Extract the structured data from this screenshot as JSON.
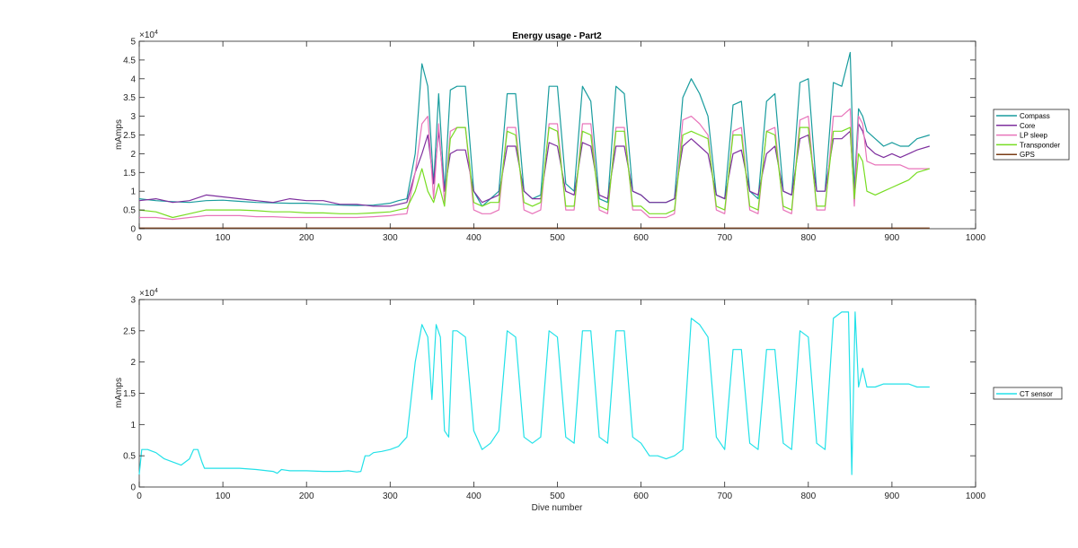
{
  "figure": {
    "title": "Energy usage - Part2"
  },
  "chart_data": [
    {
      "type": "line",
      "title": "Energy usage - Part2",
      "xlabel": "",
      "ylabel": "mAmps",
      "xlim": [
        0,
        1000
      ],
      "ylim": [
        0,
        50000
      ],
      "xticks": [
        0,
        100,
        200,
        300,
        400,
        500,
        600,
        700,
        800,
        900,
        1000
      ],
      "yticks": [
        0,
        5000,
        10000,
        15000,
        20000,
        25000,
        30000,
        35000,
        40000,
        45000,
        50000
      ],
      "ytick_labels": [
        "0",
        "0.5",
        "1",
        "1.5",
        "2",
        "2.5",
        "3",
        "3.5",
        "4",
        "4.5",
        "5"
      ],
      "y_exponent": "4",
      "legend_position": "outside-right",
      "series": [
        {
          "name": "Compass",
          "color": "#199c9e",
          "x": [
            0,
            20,
            40,
            60,
            80,
            100,
            120,
            140,
            160,
            180,
            200,
            220,
            240,
            260,
            280,
            300,
            310,
            320,
            330,
            338,
            345,
            352,
            358,
            365,
            372,
            380,
            390,
            400,
            410,
            420,
            430,
            440,
            450,
            460,
            470,
            480,
            490,
            500,
            510,
            520,
            530,
            540,
            550,
            560,
            570,
            580,
            590,
            600,
            610,
            620,
            630,
            640,
            650,
            660,
            670,
            680,
            690,
            700,
            710,
            720,
            730,
            740,
            750,
            760,
            770,
            780,
            790,
            800,
            810,
            820,
            830,
            840,
            850,
            855,
            860,
            865,
            870,
            880,
            890,
            900,
            910,
            920,
            930,
            945
          ],
          "y": [
            8000,
            7500,
            7200,
            7000,
            7500,
            7600,
            7300,
            7000,
            6900,
            6800,
            6800,
            6500,
            6300,
            6200,
            6300,
            6800,
            7500,
            8000,
            20000,
            44000,
            38000,
            12000,
            36000,
            10000,
            37000,
            38000,
            38000,
            10000,
            6000,
            8000,
            10000,
            36000,
            36000,
            10000,
            8000,
            9000,
            38000,
            38000,
            12000,
            10000,
            38000,
            34000,
            8000,
            7000,
            38000,
            36000,
            10000,
            9000,
            7000,
            7000,
            7000,
            8000,
            35000,
            40000,
            36000,
            30000,
            9000,
            8000,
            33000,
            34000,
            10000,
            8000,
            34000,
            36000,
            10000,
            9000,
            39000,
            40000,
            10000,
            10000,
            39000,
            38000,
            47000,
            10000,
            32000,
            30000,
            26000,
            24000,
            22000,
            23000,
            22000,
            22000,
            24000,
            25000
          ]
        },
        {
          "name": "Core",
          "color": "#7e2f9e",
          "x": [
            0,
            20,
            40,
            60,
            80,
            100,
            120,
            140,
            160,
            180,
            200,
            220,
            240,
            260,
            280,
            300,
            310,
            320,
            330,
            338,
            345,
            352,
            358,
            365,
            372,
            380,
            390,
            400,
            410,
            420,
            430,
            440,
            450,
            460,
            470,
            480,
            490,
            500,
            510,
            520,
            530,
            540,
            550,
            560,
            570,
            580,
            590,
            600,
            610,
            620,
            630,
            640,
            650,
            660,
            670,
            680,
            690,
            700,
            710,
            720,
            730,
            740,
            750,
            760,
            770,
            780,
            790,
            800,
            810,
            820,
            830,
            840,
            850,
            855,
            860,
            865,
            870,
            880,
            890,
            900,
            910,
            920,
            930,
            945
          ],
          "y": [
            7500,
            8000,
            7000,
            7500,
            9000,
            8500,
            8000,
            7500,
            7000,
            8000,
            7500,
            7500,
            6500,
            6500,
            6000,
            6000,
            6500,
            7000,
            15000,
            20000,
            25000,
            12000,
            26000,
            10000,
            20000,
            21000,
            21000,
            10000,
            7000,
            8000,
            9000,
            22000,
            22000,
            10000,
            8000,
            8000,
            23000,
            22000,
            10000,
            9000,
            23000,
            22000,
            9000,
            8000,
            22000,
            22000,
            10000,
            9000,
            7000,
            7000,
            7000,
            8000,
            22000,
            24000,
            22000,
            20000,
            9000,
            8000,
            20000,
            21000,
            10000,
            9000,
            20000,
            22000,
            10000,
            9000,
            24000,
            25000,
            10000,
            10000,
            24000,
            24000,
            26000,
            9000,
            28000,
            26000,
            22000,
            20000,
            19000,
            20000,
            19000,
            20000,
            21000,
            22000
          ]
        },
        {
          "name": "LP sleep",
          "color": "#e874ba",
          "x": [
            0,
            20,
            40,
            60,
            80,
            100,
            120,
            140,
            160,
            180,
            200,
            220,
            240,
            260,
            280,
            300,
            310,
            320,
            330,
            338,
            345,
            352,
            358,
            365,
            372,
            380,
            390,
            400,
            410,
            420,
            430,
            440,
            450,
            460,
            470,
            480,
            490,
            500,
            510,
            520,
            530,
            540,
            550,
            560,
            570,
            580,
            590,
            600,
            610,
            620,
            630,
            640,
            650,
            660,
            670,
            680,
            690,
            700,
            710,
            720,
            730,
            740,
            750,
            760,
            770,
            780,
            790,
            800,
            810,
            820,
            830,
            840,
            850,
            855,
            860,
            865,
            870,
            880,
            890,
            900,
            910,
            920,
            930,
            945
          ],
          "y": [
            3000,
            3000,
            2500,
            3000,
            3500,
            3500,
            3500,
            3200,
            3200,
            3000,
            3000,
            3000,
            3000,
            3000,
            3200,
            3500,
            3800,
            4000,
            15000,
            28000,
            30000,
            8000,
            28000,
            7000,
            26000,
            27000,
            27000,
            5000,
            4000,
            4000,
            5000,
            27000,
            27000,
            5000,
            4000,
            5000,
            28000,
            28000,
            5000,
            5000,
            28000,
            28000,
            5000,
            4000,
            27000,
            27000,
            5000,
            5000,
            3000,
            3000,
            3000,
            4000,
            29000,
            30000,
            28000,
            25000,
            5000,
            4000,
            26000,
            27000,
            5000,
            4000,
            26000,
            27000,
            5000,
            4000,
            29000,
            30000,
            5000,
            5000,
            30000,
            30000,
            32000,
            6000,
            30000,
            28000,
            18000,
            17000,
            17000,
            17000,
            17000,
            16000,
            16000,
            16000
          ]
        },
        {
          "name": "Transponder",
          "color": "#77dd22",
          "x": [
            0,
            20,
            40,
            60,
            80,
            100,
            120,
            140,
            160,
            180,
            200,
            220,
            240,
            260,
            280,
            300,
            310,
            320,
            330,
            338,
            345,
            352,
            358,
            365,
            372,
            380,
            390,
            400,
            410,
            420,
            430,
            440,
            450,
            460,
            470,
            480,
            490,
            500,
            510,
            520,
            530,
            540,
            550,
            560,
            570,
            580,
            590,
            600,
            610,
            620,
            630,
            640,
            650,
            660,
            670,
            680,
            690,
            700,
            710,
            720,
            730,
            740,
            750,
            760,
            770,
            780,
            790,
            800,
            810,
            820,
            830,
            840,
            850,
            855,
            860,
            865,
            870,
            880,
            890,
            900,
            910,
            920,
            930,
            945
          ],
          "y": [
            5000,
            4500,
            3000,
            4000,
            5000,
            5000,
            5000,
            4800,
            4500,
            4500,
            4200,
            4200,
            4000,
            4000,
            4200,
            4500,
            5000,
            5500,
            10000,
            16000,
            10000,
            7000,
            12000,
            6000,
            24000,
            27000,
            27000,
            7000,
            6000,
            7000,
            7000,
            26000,
            25000,
            7000,
            6000,
            7000,
            27000,
            26000,
            6000,
            6000,
            26000,
            25000,
            6000,
            5000,
            26000,
            26000,
            6000,
            6000,
            4000,
            4000,
            4000,
            5000,
            25000,
            26000,
            25000,
            24000,
            6000,
            5000,
            25000,
            25000,
            6000,
            5000,
            26000,
            25000,
            6000,
            5000,
            27000,
            27000,
            6000,
            6000,
            26000,
            26000,
            27000,
            8000,
            20000,
            18000,
            10000,
            9000,
            10000,
            11000,
            12000,
            13000,
            15000,
            16000
          ]
        },
        {
          "name": "GPS",
          "color": "#7a3c16",
          "x": [
            0,
            100,
            200,
            300,
            400,
            500,
            600,
            700,
            800,
            900,
            945
          ],
          "y": [
            200,
            200,
            200,
            200,
            200,
            200,
            200,
            200,
            200,
            200,
            200
          ]
        }
      ]
    },
    {
      "type": "line",
      "title": "",
      "xlabel": "Dive number",
      "ylabel": "mAmps",
      "xlim": [
        0,
        1000
      ],
      "ylim": [
        0,
        30000
      ],
      "xticks": [
        0,
        100,
        200,
        300,
        400,
        500,
        600,
        700,
        800,
        900,
        1000
      ],
      "yticks": [
        0,
        5000,
        10000,
        15000,
        20000,
        25000,
        30000
      ],
      "ytick_labels": [
        "0",
        "0.5",
        "1",
        "1.5",
        "2",
        "2.5",
        "3"
      ],
      "y_exponent": "4",
      "legend_position": "outside-right",
      "series": [
        {
          "name": "CT sensor",
          "color": "#22e1e8",
          "x": [
            0,
            3,
            10,
            20,
            30,
            40,
            50,
            60,
            65,
            70,
            75,
            78,
            80,
            100,
            120,
            140,
            160,
            165,
            170,
            175,
            180,
            200,
            220,
            240,
            250,
            260,
            265,
            270,
            275,
            280,
            290,
            300,
            310,
            320,
            330,
            338,
            345,
            350,
            355,
            360,
            365,
            370,
            375,
            380,
            390,
            400,
            410,
            420,
            430,
            440,
            450,
            460,
            470,
            480,
            490,
            500,
            510,
            520,
            530,
            540,
            550,
            560,
            570,
            580,
            590,
            600,
            610,
            620,
            630,
            640,
            650,
            660,
            670,
            680,
            690,
            700,
            710,
            720,
            730,
            740,
            750,
            760,
            770,
            780,
            790,
            800,
            810,
            820,
            830,
            840,
            848,
            852,
            856,
            860,
            865,
            870,
            880,
            890,
            900,
            910,
            920,
            930,
            945
          ],
          "y": [
            2000,
            6000,
            6000,
            5500,
            4500,
            4000,
            3500,
            4500,
            6000,
            6000,
            4000,
            3000,
            3000,
            3000,
            3000,
            2800,
            2500,
            2200,
            2800,
            2700,
            2600,
            2600,
            2500,
            2500,
            2600,
            2400,
            2500,
            5000,
            5000,
            5500,
            5700,
            6000,
            6500,
            8000,
            20000,
            26000,
            24000,
            14000,
            26000,
            24000,
            9000,
            8000,
            25000,
            25000,
            24000,
            9000,
            6000,
            7000,
            9000,
            25000,
            24000,
            8000,
            7000,
            8000,
            25000,
            24000,
            8000,
            7000,
            25000,
            25000,
            8000,
            7000,
            25000,
            25000,
            8000,
            7000,
            5000,
            5000,
            4500,
            5000,
            6000,
            27000,
            26000,
            24000,
            8000,
            6000,
            22000,
            22000,
            7000,
            6000,
            22000,
            22000,
            7000,
            6000,
            25000,
            24000,
            7000,
            6000,
            27000,
            28000,
            28000,
            2000,
            28000,
            16000,
            19000,
            16000,
            16000,
            16500,
            16500,
            16500,
            16500,
            16000,
            16000
          ]
        }
      ]
    }
  ]
}
